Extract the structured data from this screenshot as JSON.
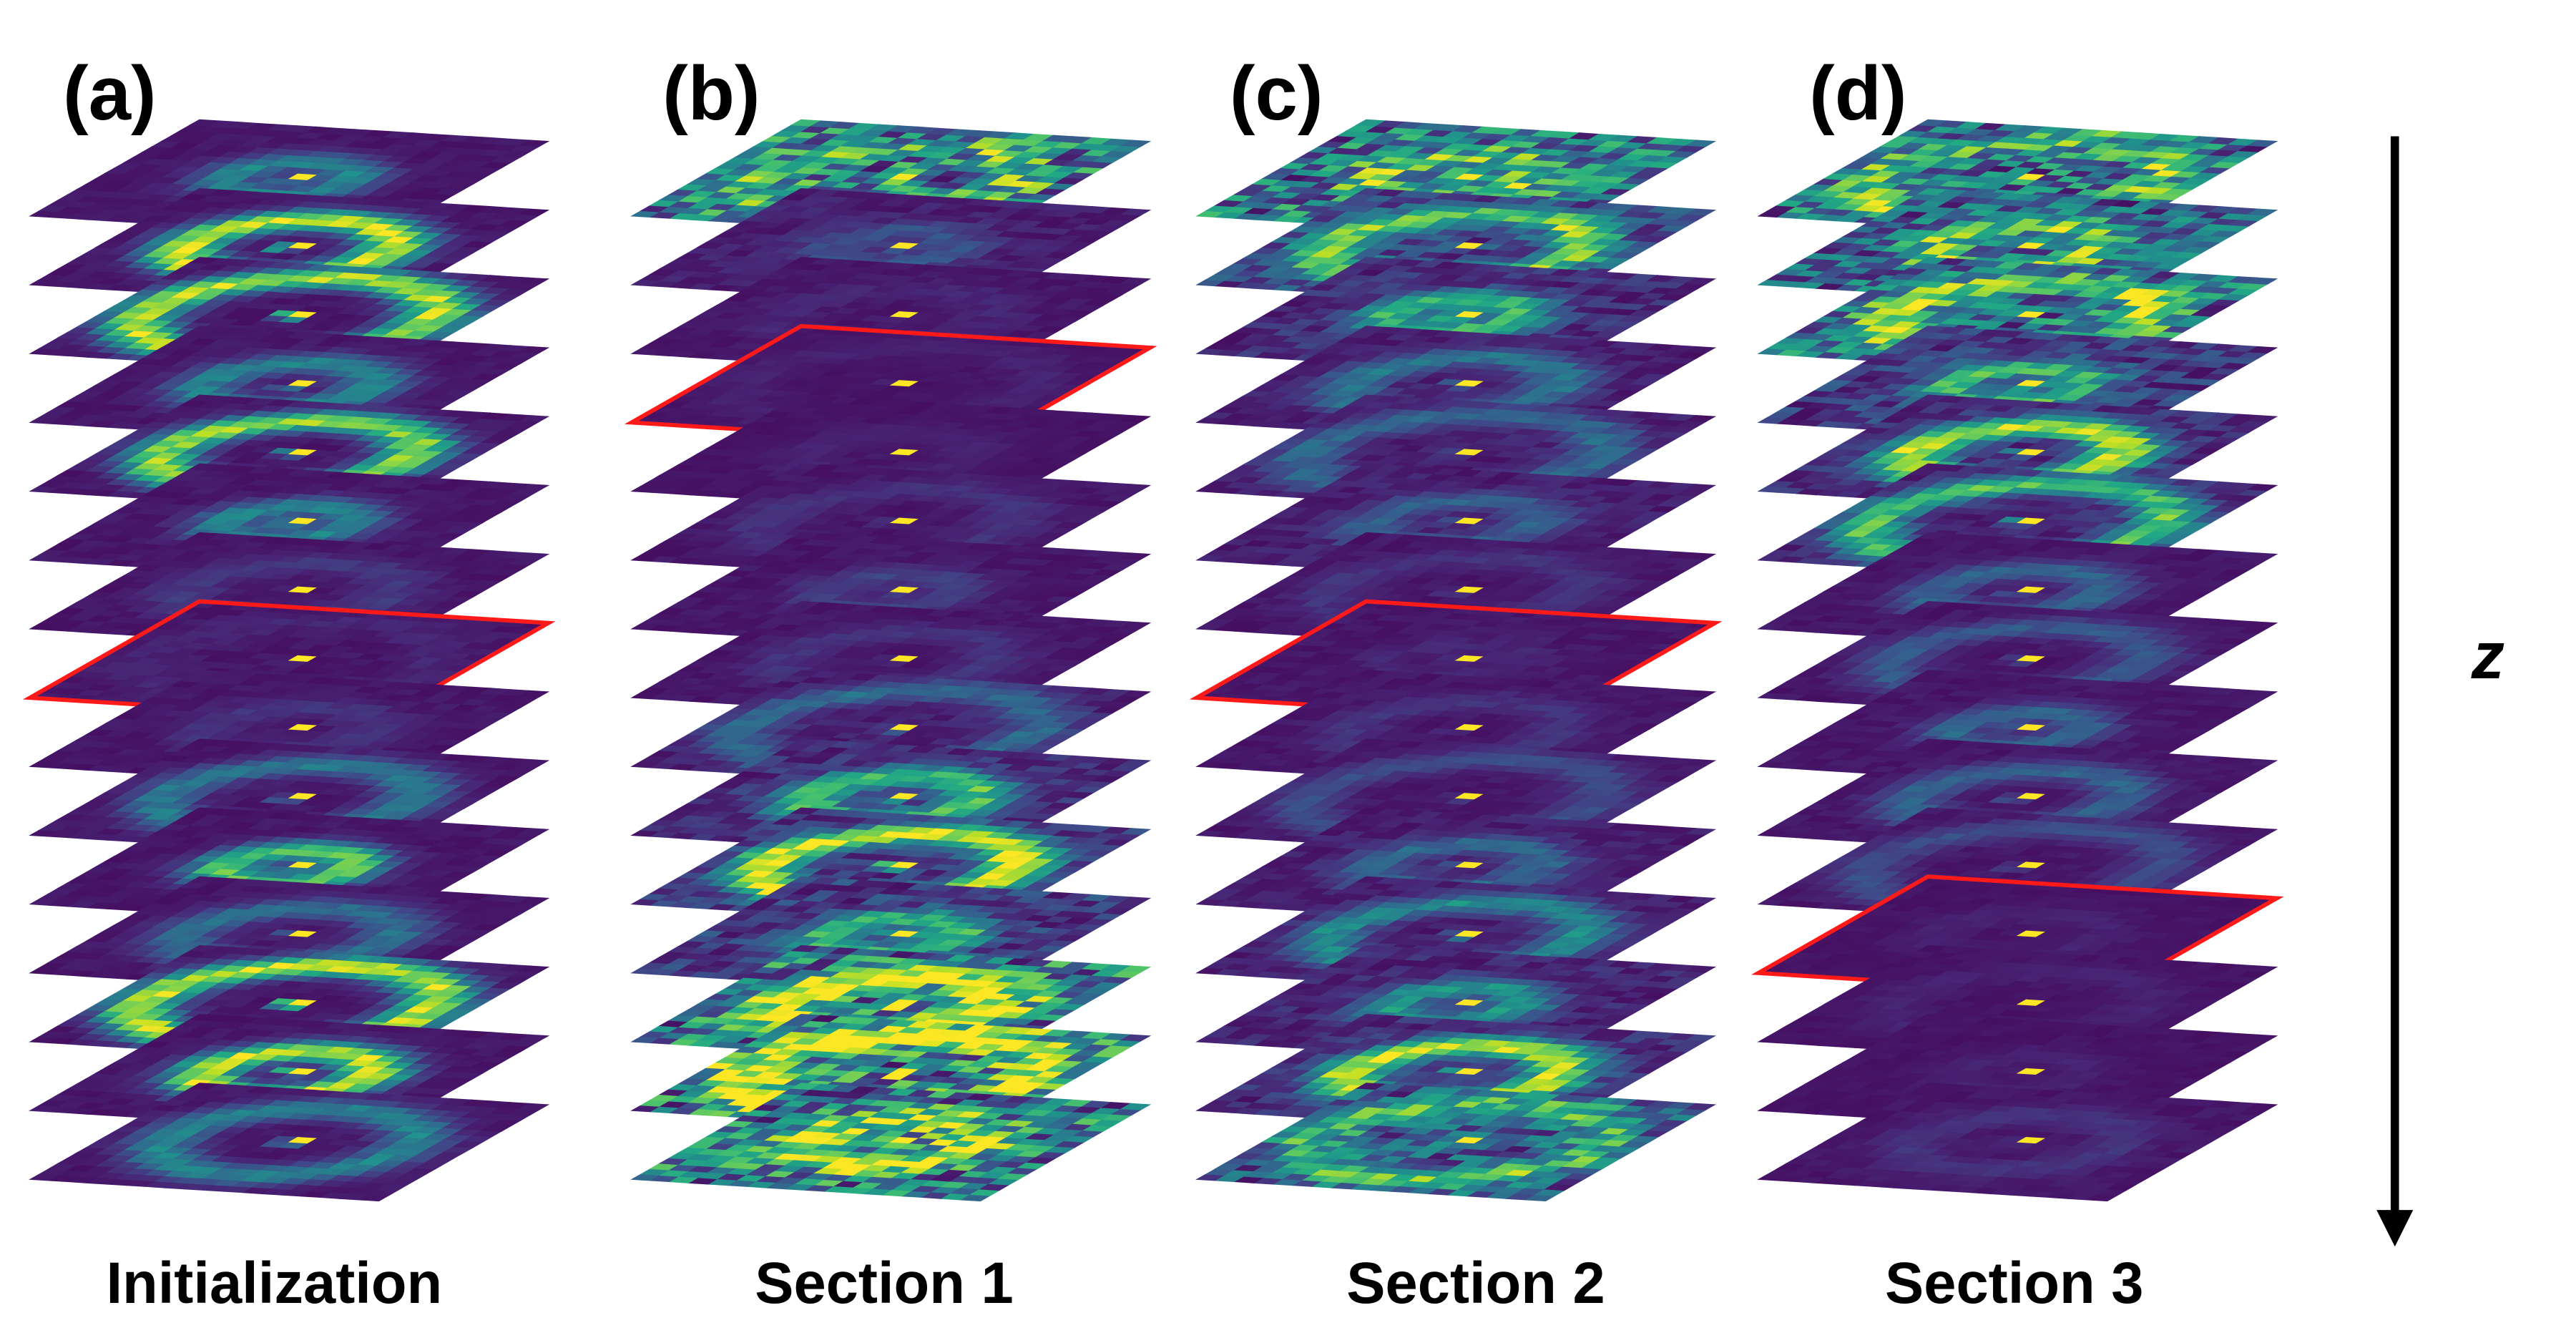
{
  "panels": [
    {
      "label": "(a)",
      "caption": "Initialization"
    },
    {
      "label": "(b)",
      "caption": "Section 1"
    },
    {
      "label": "(c)",
      "caption": "Section 2"
    },
    {
      "label": "(d)",
      "caption": "Section 3"
    }
  ],
  "axis_label": "z"
}
